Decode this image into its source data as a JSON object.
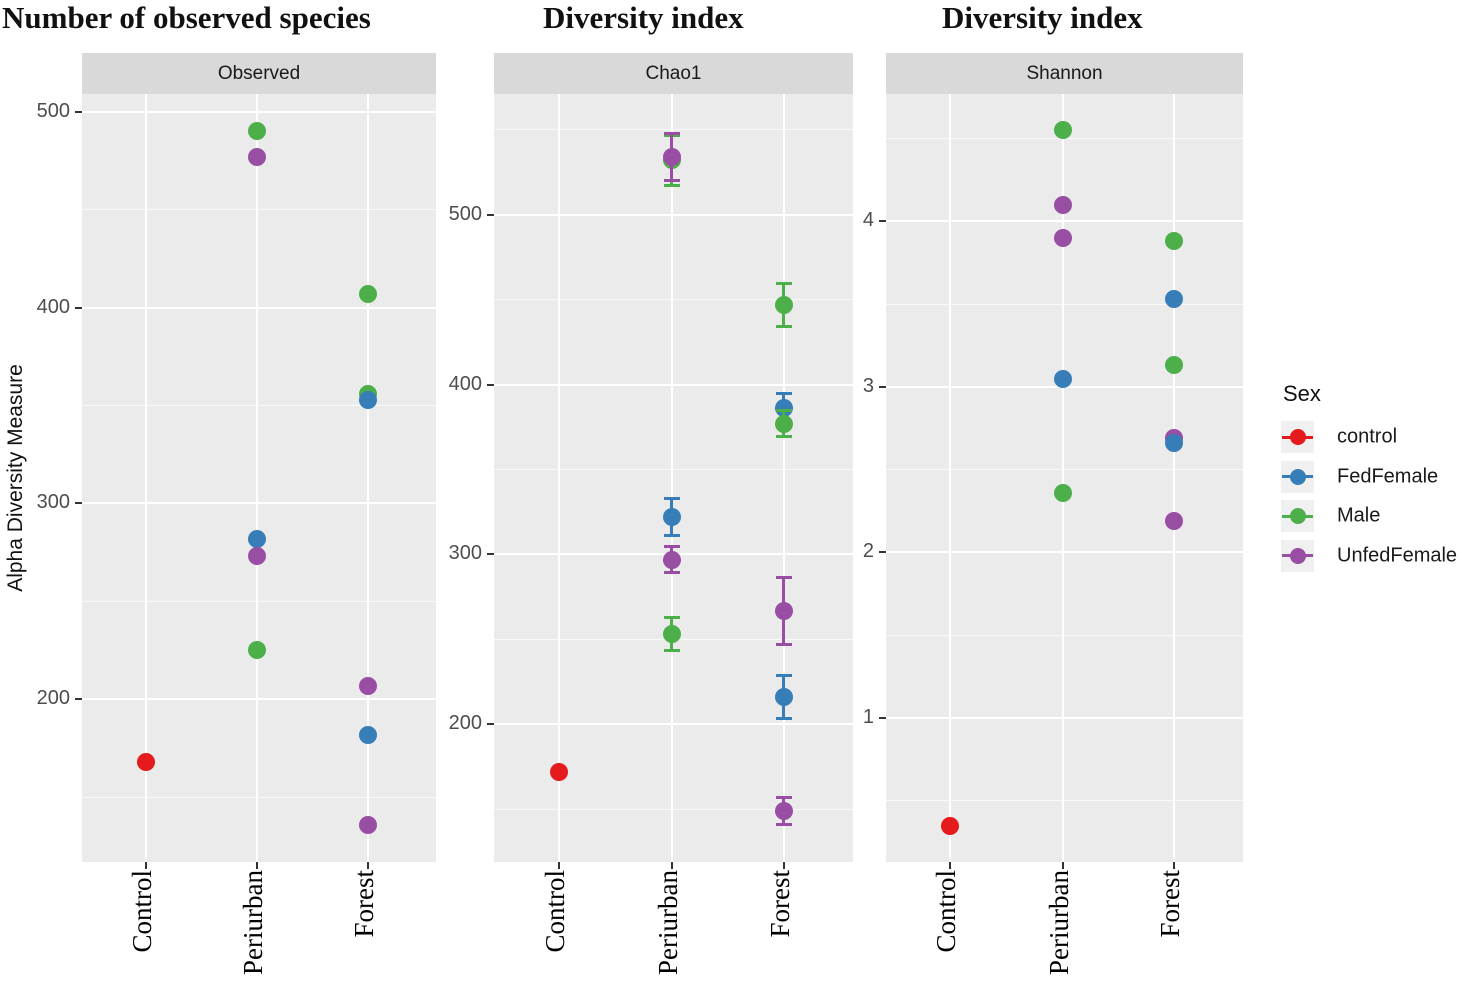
{
  "y_axis_title": "Alpha Diversity Measure",
  "legend": {
    "title": "Sex",
    "items": [
      {
        "label": "control",
        "color": "#E41A1C"
      },
      {
        "label": "FedFemale",
        "color": "#377EB8"
      },
      {
        "label": "Male",
        "color": "#4DAF4A"
      },
      {
        "label": "UnfedFemale",
        "color": "#984EA3"
      }
    ]
  },
  "colors": {
    "panel_bg": "#ebebeb",
    "strip_bg": "#d9d9d9",
    "grid": "#ffffff",
    "tick_text": "#4d4d4d"
  },
  "chart_data": [
    {
      "type": "scatter",
      "title": "Number of observed species",
      "facet": "Observed",
      "ylabel": "Alpha Diversity Measure",
      "categories": [
        "Control",
        "Periurban",
        "Forest"
      ],
      "yticks": [
        200,
        300,
        400,
        500
      ],
      "minor_ticks": [
        150,
        250,
        350,
        450
      ],
      "ylim": [
        117,
        509
      ],
      "legend_position": "none",
      "grid": true,
      "points": [
        {
          "x": "Control",
          "sex": "control",
          "y": 168
        },
        {
          "x": "Periurban",
          "sex": "Male",
          "y": 490
        },
        {
          "x": "Periurban",
          "sex": "UnfedFemale",
          "y": 477
        },
        {
          "x": "Periurban",
          "sex": "FedFemale",
          "y": 282
        },
        {
          "x": "Periurban",
          "sex": "UnfedFemale",
          "y": 273
        },
        {
          "x": "Periurban",
          "sex": "Male",
          "y": 225
        },
        {
          "x": "Forest",
          "sex": "Male",
          "y": 407
        },
        {
          "x": "Forest",
          "sex": "Male",
          "y": 356
        },
        {
          "x": "Forest",
          "sex": "FedFemale",
          "y": 353
        },
        {
          "x": "Forest",
          "sex": "UnfedFemale",
          "y": 207
        },
        {
          "x": "Forest",
          "sex": "FedFemale",
          "y": 182
        },
        {
          "x": "Forest",
          "sex": "UnfedFemale",
          "y": 136
        }
      ]
    },
    {
      "type": "scatter",
      "title": "Diversity index",
      "facet": "Chao1",
      "ylabel": "Alpha Diversity Measure",
      "categories": [
        "Control",
        "Periurban",
        "Forest"
      ],
      "yticks": [
        200,
        300,
        400,
        500
      ],
      "minor_ticks": [
        150,
        250,
        350,
        450,
        550
      ],
      "ylim": [
        119,
        571
      ],
      "legend_position": "none",
      "grid": true,
      "points": [
        {
          "x": "Control",
          "sex": "control",
          "y": 172
        },
        {
          "x": "Periurban",
          "sex": "Male",
          "y": 532,
          "se": 15
        },
        {
          "x": "Periurban",
          "sex": "UnfedFemale",
          "y": 534,
          "se": 14
        },
        {
          "x": "Periurban",
          "sex": "FedFemale",
          "y": 322,
          "se": 11
        },
        {
          "x": "Periurban",
          "sex": "UnfedFemale",
          "y": 297,
          "se": 8
        },
        {
          "x": "Periurban",
          "sex": "Male",
          "y": 253,
          "se": 10
        },
        {
          "x": "Forest",
          "sex": "Male",
          "y": 447,
          "se": 13
        },
        {
          "x": "Forest",
          "sex": "FedFemale",
          "y": 386,
          "se": 9
        },
        {
          "x": "Forest",
          "sex": "Male",
          "y": 377,
          "se": 8
        },
        {
          "x": "Forest",
          "sex": "UnfedFemale",
          "y": 267,
          "se": 20
        },
        {
          "x": "Forest",
          "sex": "FedFemale",
          "y": 216,
          "se": 13
        },
        {
          "x": "Forest",
          "sex": "UnfedFemale",
          "y": 149,
          "se": 8
        }
      ]
    },
    {
      "type": "scatter",
      "title": "Diversity index",
      "facet": "Shannon",
      "ylabel": "Alpha Diversity Measure",
      "categories": [
        "Control",
        "Periurban",
        "Forest"
      ],
      "yticks": [
        1,
        2,
        3,
        4
      ],
      "minor_ticks": [
        0.5,
        1.5,
        2.5,
        3.5,
        4.5
      ],
      "ylim": [
        0.13,
        4.77
      ],
      "legend_position": "right",
      "grid": true,
      "points": [
        {
          "x": "Control",
          "sex": "control",
          "y": 0.35
        },
        {
          "x": "Periurban",
          "sex": "Male",
          "y": 4.55
        },
        {
          "x": "Periurban",
          "sex": "UnfedFemale",
          "y": 4.1
        },
        {
          "x": "Periurban",
          "sex": "UnfedFemale",
          "y": 3.9
        },
        {
          "x": "Periurban",
          "sex": "FedFemale",
          "y": 3.05
        },
        {
          "x": "Periurban",
          "sex": "Male",
          "y": 2.36
        },
        {
          "x": "Forest",
          "sex": "Male",
          "y": 3.88
        },
        {
          "x": "Forest",
          "sex": "FedFemale",
          "y": 3.53
        },
        {
          "x": "Forest",
          "sex": "Male",
          "y": 3.13
        },
        {
          "x": "Forest",
          "sex": "UnfedFemale",
          "y": 2.69
        },
        {
          "x": "Forest",
          "sex": "FedFemale",
          "y": 2.66
        },
        {
          "x": "Forest",
          "sex": "UnfedFemale",
          "y": 2.19
        }
      ]
    }
  ]
}
